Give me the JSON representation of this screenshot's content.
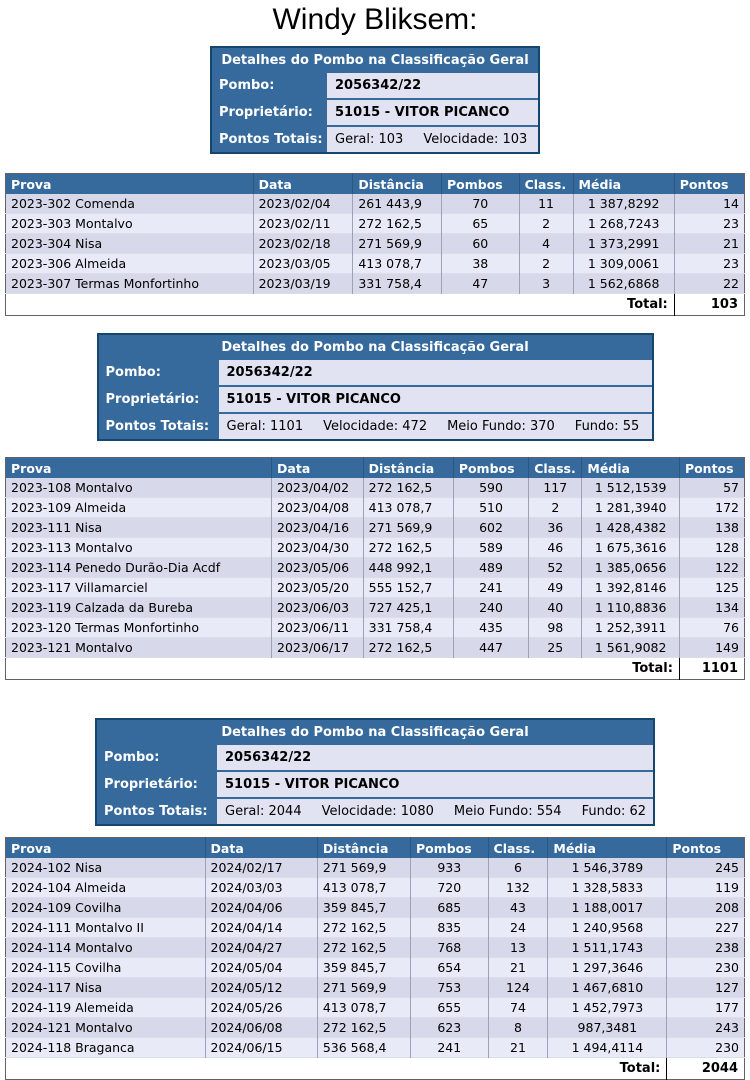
{
  "page_title": "Windy Bliksem:",
  "colors": {
    "header_blue": "#36699c",
    "card_border": "#16456e",
    "card_value_bg": "#e2e3f2",
    "row_odd": "#d7d8e9",
    "row_even": "#e9eaf7"
  },
  "sections": [
    {
      "card": {
        "title": "Detalhes do Pombo na Classificação Geral",
        "pombo_label": "Pombo:",
        "pombo_value": "2056342/22",
        "proprietario_label": "Proprietário:",
        "proprietario_value": "51015 - VITOR PICANCO",
        "pontos_totais_label": "Pontos Totais:",
        "pontos_totais_stats": [
          "Geral: 103",
          "Velocidade: 103"
        ]
      },
      "table": {
        "headers": [
          "Prova",
          "Data",
          "Distância",
          "Pombos",
          "Class.",
          "Média",
          "Pontos"
        ],
        "rows": [
          [
            "2023-302 Comenda",
            "2023/02/04",
            "261 443,9",
            "70",
            "11",
            "1 387,8292",
            "14"
          ],
          [
            "2023-303 Montalvo",
            "2023/02/11",
            "272 162,5",
            "65",
            "2",
            "1 268,7243",
            "23"
          ],
          [
            "2023-304 Nisa",
            "2023/02/18",
            "271 569,9",
            "60",
            "4",
            "1 373,2991",
            "21"
          ],
          [
            "2023-306 Almeida",
            "2023/03/05",
            "413 078,7",
            "38",
            "2",
            "1 309,0061",
            "23"
          ],
          [
            "2023-307 Termas Monfortinho",
            "2023/03/19",
            "331 758,4",
            "47",
            "3",
            "1 562,6868",
            "22"
          ]
        ],
        "total_label": "Total:",
        "total_value": "103"
      }
    },
    {
      "card": {
        "title": "Detalhes do Pombo na Classificação Geral",
        "pombo_label": "Pombo:",
        "pombo_value": "2056342/22",
        "proprietario_label": "Proprietário:",
        "proprietario_value": "51015 - VITOR PICANCO",
        "pontos_totais_label": "Pontos Totais:",
        "pontos_totais_stats": [
          "Geral: 1101",
          "Velocidade: 472",
          "Meio Fundo: 370",
          "Fundo: 55"
        ]
      },
      "table": {
        "headers": [
          "Prova",
          "Data",
          "Distância",
          "Pombos",
          "Class.",
          "Média",
          "Pontos"
        ],
        "rows": [
          [
            "2023-108 Montalvo",
            "2023/04/02",
            "272 162,5",
            "590",
            "117",
            "1 512,1539",
            "57"
          ],
          [
            "2023-109 Almeida",
            "2023/04/08",
            "413 078,7",
            "510",
            "2",
            "1 281,3940",
            "172"
          ],
          [
            "2023-111 Nisa",
            "2023/04/16",
            "271 569,9",
            "602",
            "36",
            "1 428,4382",
            "138"
          ],
          [
            "2023-113 Montalvo",
            "2023/04/30",
            "272 162,5",
            "589",
            "46",
            "1 675,3616",
            "128"
          ],
          [
            "2023-114 Penedo Durão-Dia Acdf",
            "2023/05/06",
            "448 992,1",
            "489",
            "52",
            "1 385,0656",
            "122"
          ],
          [
            "2023-117 Villamarciel",
            "2023/05/20",
            "555 152,7",
            "241",
            "49",
            "1 392,8146",
            "125"
          ],
          [
            "2023-119 Calzada da Bureba",
            "2023/06/03",
            "727 425,1",
            "240",
            "40",
            "1 110,8836",
            "134"
          ],
          [
            "2023-120 Termas Monfortinho",
            "2023/06/11",
            "331 758,4",
            "435",
            "98",
            "1 252,3911",
            "76"
          ],
          [
            "2023-121 Montalvo",
            "2023/06/17",
            "272 162,5",
            "447",
            "25",
            "1 561,9082",
            "149"
          ]
        ],
        "total_label": "Total:",
        "total_value": "1101"
      }
    },
    {
      "card": {
        "title": "Detalhes do Pombo na Classificação Geral",
        "pombo_label": "Pombo:",
        "pombo_value": "2056342/22",
        "proprietario_label": "Proprietário:",
        "proprietario_value": "51015 - VITOR PICANCO",
        "pontos_totais_label": "Pontos Totais:",
        "pontos_totais_stats": [
          "Geral: 2044",
          "Velocidade: 1080",
          "Meio Fundo: 554",
          "Fundo: 62"
        ]
      },
      "table": {
        "headers": [
          "Prova",
          "Data",
          "Distância",
          "Pombos",
          "Class.",
          "Média",
          "Pontos"
        ],
        "rows": [
          [
            "2024-102 Nisa",
            "2024/02/17",
            "271 569,9",
            "933",
            "6",
            "1 546,3789",
            "245"
          ],
          [
            "2024-104 Almeida",
            "2024/03/03",
            "413 078,7",
            "720",
            "132",
            "1 328,5833",
            "119"
          ],
          [
            "2024-109 Covilha",
            "2024/04/06",
            "359 845,7",
            "685",
            "43",
            "1 188,0017",
            "208"
          ],
          [
            "2024-111 Montalvo II",
            "2024/04/14",
            "272 162,5",
            "835",
            "24",
            "1 240,9568",
            "227"
          ],
          [
            "2024-114 Montalvo",
            "2024/04/27",
            "272 162,5",
            "768",
            "13",
            "1 511,1743",
            "238"
          ],
          [
            "2024-115 Covilha",
            "2024/05/04",
            "359 845,7",
            "654",
            "21",
            "1 297,3646",
            "230"
          ],
          [
            "2024-117 Nisa",
            "2024/05/12",
            "271 569,9",
            "753",
            "124",
            "1 467,6810",
            "127"
          ],
          [
            "2024-119 Alemeida",
            "2024/05/26",
            "413 078,7",
            "655",
            "74",
            "1 452,7973",
            "177"
          ],
          [
            "2024-121 Montalvo",
            "2024/06/08",
            "272 162,5",
            "623",
            "8",
            "987,3481",
            "243"
          ],
          [
            "2024-118 Braganca",
            "2024/06/15",
            "536 568,4",
            "241",
            "21",
            "1 494,4114",
            "230"
          ]
        ],
        "total_label": "Total:",
        "total_value": "2044"
      }
    }
  ]
}
